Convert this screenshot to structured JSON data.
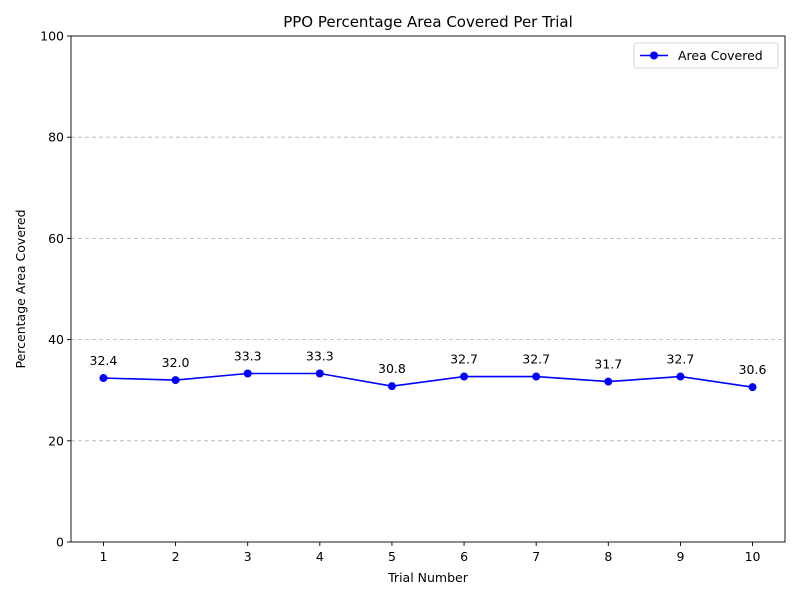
{
  "chart_data": {
    "type": "line",
    "title": "PPO Percentage Area Covered Per Trial",
    "xlabel": "Trial Number",
    "ylabel": "Percentage Area Covered",
    "x": [
      1,
      2,
      3,
      4,
      5,
      6,
      7,
      8,
      9,
      10
    ],
    "series": [
      {
        "name": "Area Covered",
        "values": [
          32.4,
          32.0,
          33.3,
          33.3,
          30.8,
          32.7,
          32.7,
          31.7,
          32.7,
          30.6
        ],
        "labels": [
          "32.4",
          "32.0",
          "33.3",
          "33.3",
          "30.8",
          "32.7",
          "32.7",
          "31.7",
          "32.7",
          "30.6"
        ],
        "color": "#0000ff",
        "marker": "circle"
      }
    ],
    "xticks": [
      "1",
      "2",
      "3",
      "4",
      "5",
      "6",
      "7",
      "8",
      "9",
      "10"
    ],
    "yticks": [
      "0",
      "20",
      "40",
      "60",
      "80",
      "100"
    ],
    "xlim": [
      0.55,
      10.45
    ],
    "ylim": [
      0,
      100
    ],
    "grid": "y-dashed",
    "legend_position": "top-right"
  }
}
